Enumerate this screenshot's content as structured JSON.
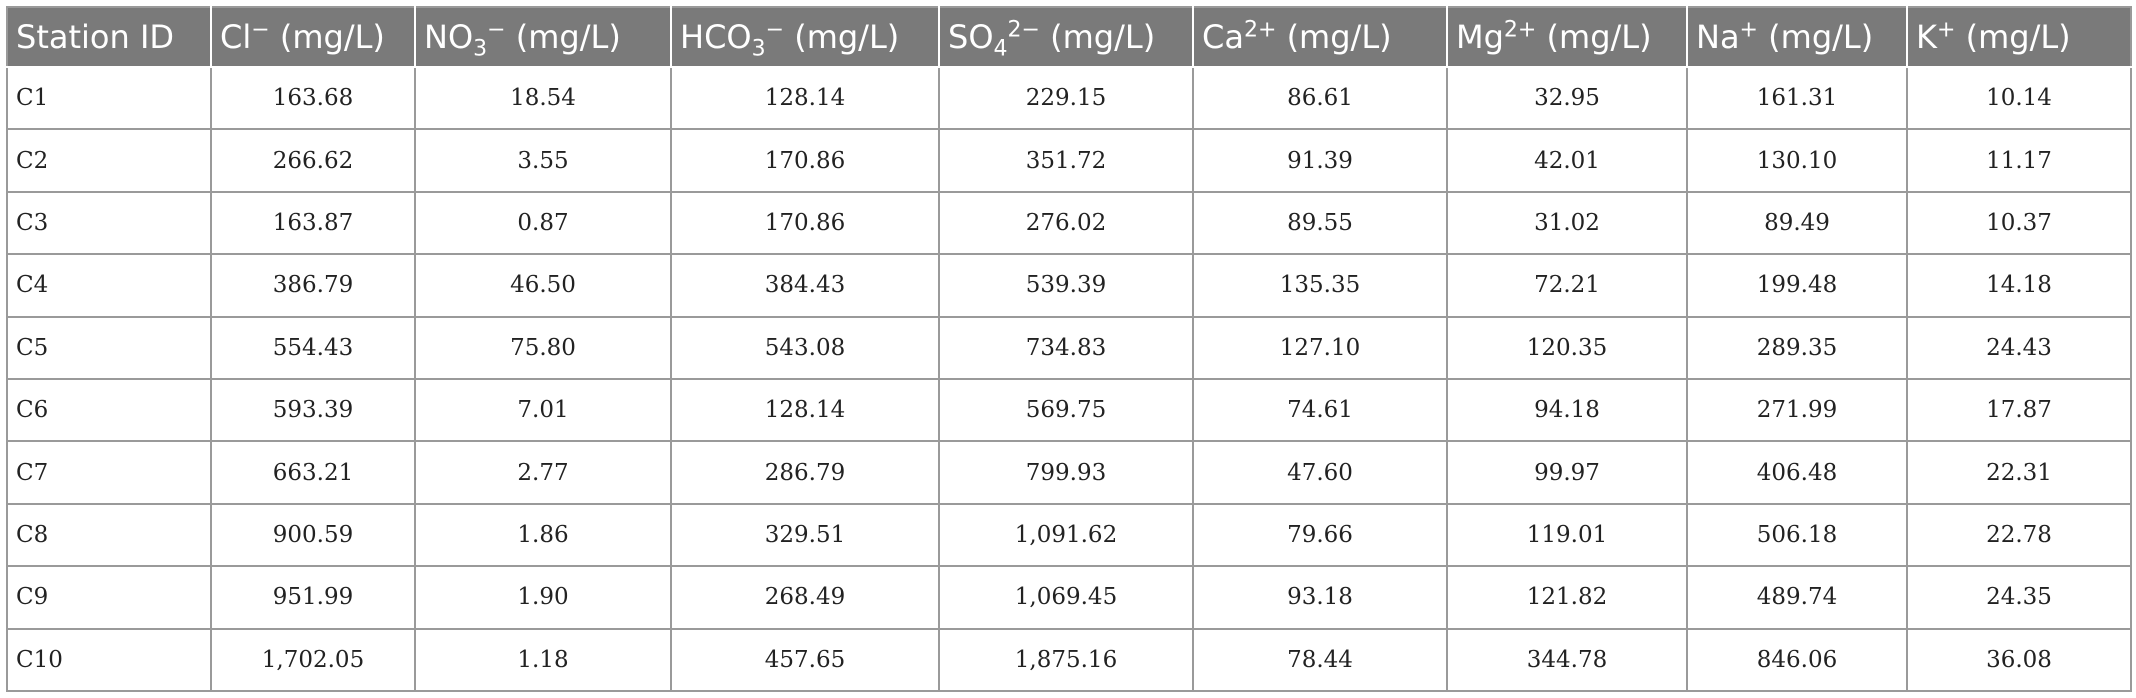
{
  "table": {
    "headers": [
      {
        "key": "station",
        "base": "Station ID",
        "charge": "",
        "charge_type": "none",
        "unit": ""
      },
      {
        "key": "cl",
        "base": "Cl",
        "charge": "−",
        "charge_type": "sup",
        "unit": " (mg/L)"
      },
      {
        "key": "no3",
        "base": "NO",
        "sub": "3",
        "charge": "−",
        "charge_type": "sup",
        "unit": " (mg/L)"
      },
      {
        "key": "hco3",
        "base": "HCO",
        "sub": "3",
        "charge": "−",
        "charge_type": "sup",
        "unit": " (mg/L)"
      },
      {
        "key": "so4",
        "base": "SO",
        "sub": "4",
        "charge": "2−",
        "charge_type": "sup",
        "unit": " (mg/L)"
      },
      {
        "key": "ca",
        "base": "Ca",
        "charge": "2+",
        "charge_type": "sup",
        "unit": " (mg/L)"
      },
      {
        "key": "mg",
        "base": "Mg",
        "charge": "2+",
        "charge_type": "sup",
        "unit": " (mg/L)"
      },
      {
        "key": "na",
        "base": "Na",
        "charge": "+",
        "charge_type": "sup",
        "unit": " (mg/L)"
      },
      {
        "key": "k",
        "base": "K",
        "charge": "+",
        "charge_type": "sup",
        "unit": " (mg/L)"
      }
    ],
    "rows": [
      [
        "C1",
        "163.68",
        "18.54",
        "128.14",
        "229.15",
        "86.61",
        "32.95",
        "161.31",
        "10.14"
      ],
      [
        "C2",
        "266.62",
        "3.55",
        "170.86",
        "351.72",
        "91.39",
        "42.01",
        "130.10",
        "11.17"
      ],
      [
        "C3",
        "163.87",
        "0.87",
        "170.86",
        "276.02",
        "89.55",
        "31.02",
        "89.49",
        "10.37"
      ],
      [
        "C4",
        "386.79",
        "46.50",
        "384.43",
        "539.39",
        "135.35",
        "72.21",
        "199.48",
        "14.18"
      ],
      [
        "C5",
        "554.43",
        "75.80",
        "543.08",
        "734.83",
        "127.10",
        "120.35",
        "289.35",
        "24.43"
      ],
      [
        "C6",
        "593.39",
        "7.01",
        "128.14",
        "569.75",
        "74.61",
        "94.18",
        "271.99",
        "17.87"
      ],
      [
        "C7",
        "663.21",
        "2.77",
        "286.79",
        "799.93",
        "47.60",
        "99.97",
        "406.48",
        "22.31"
      ],
      [
        "C8",
        "900.59",
        "1.86",
        "329.51",
        "1,091.62",
        "79.66",
        "119.01",
        "506.18",
        "22.78"
      ],
      [
        "C9",
        "951.99",
        "1.90",
        "268.49",
        "1,069.45",
        "93.18",
        "121.82",
        "489.74",
        "24.35"
      ],
      [
        "C10",
        "1,702.05",
        "1.18",
        "457.65",
        "1,875.16",
        "78.44",
        "344.78",
        "846.06",
        "36.08"
      ]
    ]
  }
}
